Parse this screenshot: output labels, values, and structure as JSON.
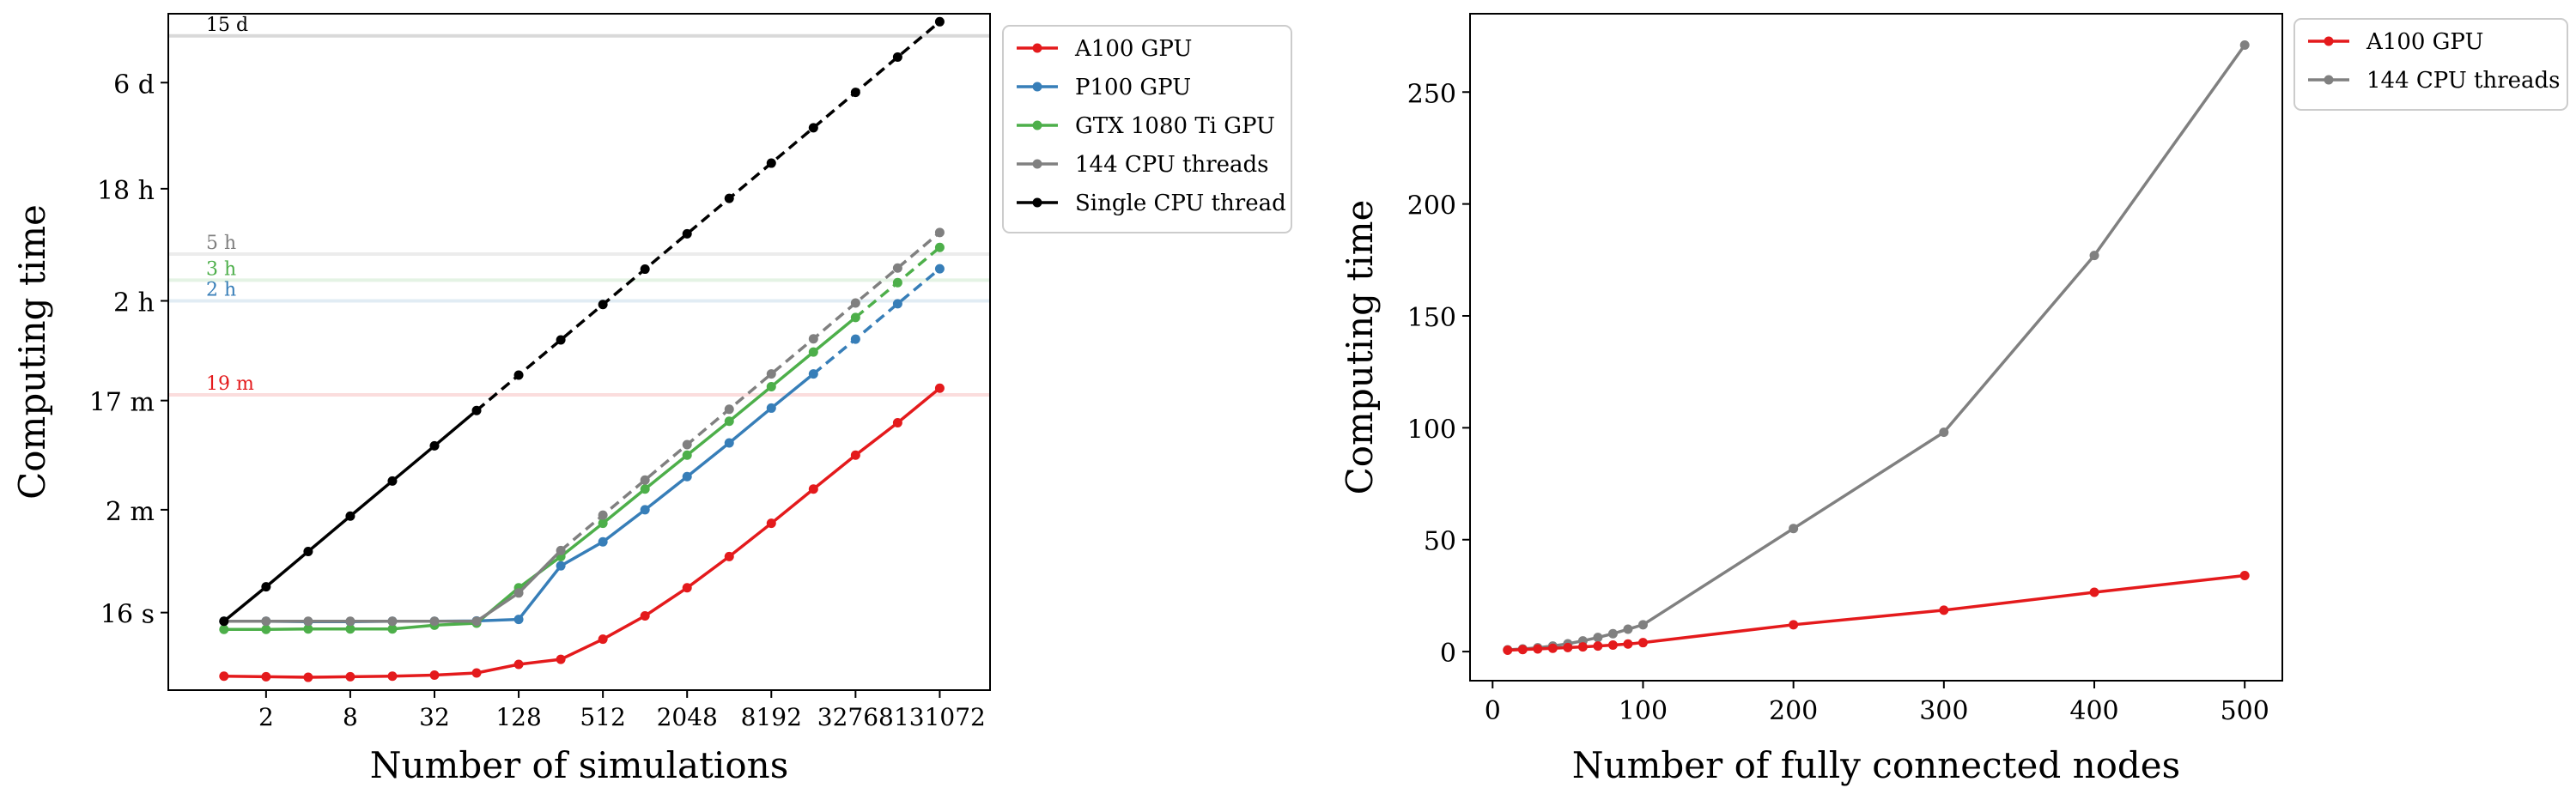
{
  "chart_data": [
    {
      "type": "line",
      "xlabel": "Number of simulations",
      "ylabel": "Computing time",
      "x_scale": "log2",
      "y_scale": "log",
      "x_ticks": [
        2,
        8,
        32,
        128,
        512,
        2048,
        8192,
        32768,
        131072
      ],
      "x_tick_labels": [
        "2",
        "8",
        "32",
        "128",
        "512",
        "2048",
        "8192",
        "32768",
        "131072"
      ],
      "y_ticks_seconds": [
        16,
        120,
        1020,
        7200,
        64800,
        518400
      ],
      "y_tick_labels": [
        "16 s",
        "2 m",
        "17 m",
        "2 h",
        "18 h",
        "6 d"
      ],
      "x_range": [
        0.4,
        300000.0
      ],
      "y_range_seconds": [
        3.5,
        2000000
      ],
      "legend_position": "outside-right-top",
      "x": [
        1,
        2,
        4,
        8,
        16,
        32,
        64,
        128,
        256,
        512,
        1024,
        2048,
        4096,
        8192,
        16384,
        32768,
        65536,
        131072
      ],
      "series": [
        {
          "name": "A100 GPU",
          "color": "#e41a1c",
          "values_seconds": [
            4.6,
            4.55,
            4.5,
            4.55,
            4.6,
            4.7,
            4.9,
            5.8,
            6.4,
            9.5,
            15,
            26,
            48,
            92,
            180,
            350,
            660,
            1300
          ],
          "dashed_from_index": null,
          "reference_line_seconds": 1140,
          "reference_label": "19 m"
        },
        {
          "name": "P100 GPU",
          "color": "#377eb8",
          "values_seconds": [
            13.5,
            13.5,
            13.4,
            13.4,
            13.5,
            13.5,
            13.6,
            14,
            40,
            64,
            120,
            230,
            445,
            880,
            1720,
            3400,
            6800,
            13500
          ],
          "dashed_from_index": 14,
          "reference_line_seconds": 7200,
          "reference_label": "2 h"
        },
        {
          "name": "GTX 1080 Ti GPU",
          "color": "#4daf4a",
          "values_seconds": [
            11.5,
            11.5,
            11.6,
            11.6,
            11.6,
            12.5,
            13,
            26,
            48,
            92,
            180,
            350,
            680,
            1340,
            2640,
            5200,
            10300,
            20500
          ],
          "dashed_from_index": 15,
          "reference_line_seconds": 10800,
          "reference_label": "3 h"
        },
        {
          "name": "144 CPU threads",
          "color": "#808080",
          "values_seconds": [
            13.5,
            13.5,
            13.5,
            13.5,
            13.5,
            13.5,
            13.5,
            23.5,
            54,
            108,
            215,
            430,
            860,
            1720,
            3420,
            6900,
            13700,
            27500
          ],
          "dashed_from_index": 8,
          "reference_line_seconds": 18000,
          "reference_label": "5 h"
        },
        {
          "name": "Single CPU thread",
          "color": "#000000",
          "values_seconds": [
            13.5,
            26.5,
            53,
            106,
            211,
            420,
            840,
            1680,
            3350,
            6700,
            13400,
            26800,
            53600,
            107000,
            214000,
            428000,
            856000,
            1710000
          ],
          "dashed_from_index": 6,
          "reference_line_seconds": 1296000,
          "reference_label": "15 d"
        }
      ]
    },
    {
      "type": "line",
      "xlabel": "Number of fully connected nodes",
      "ylabel": "Computing time",
      "x_ticks": [
        0,
        100,
        200,
        300,
        400,
        500
      ],
      "y_ticks": [
        0,
        50,
        100,
        150,
        200,
        250
      ],
      "x_range": [
        -15,
        525
      ],
      "y_range": [
        -13,
        285
      ],
      "legend_position": "outside-right-top",
      "x": [
        10,
        20,
        30,
        40,
        50,
        60,
        70,
        80,
        90,
        100,
        200,
        300,
        400,
        500
      ],
      "series": [
        {
          "name": "A100 GPU",
          "color": "#e41a1c",
          "values": [
            0.6,
            0.9,
            1.2,
            1.5,
            1.8,
            2.1,
            2.5,
            2.9,
            3.4,
            4,
            12,
            18.5,
            26.5,
            34
          ]
        },
        {
          "name": "144 CPU threads",
          "color": "#808080",
          "values": [
            0.8,
            1.2,
            1.7,
            2.5,
            3.5,
            4.8,
            6.3,
            8,
            10,
            12,
            55,
            98,
            177,
            271
          ]
        }
      ]
    }
  ]
}
